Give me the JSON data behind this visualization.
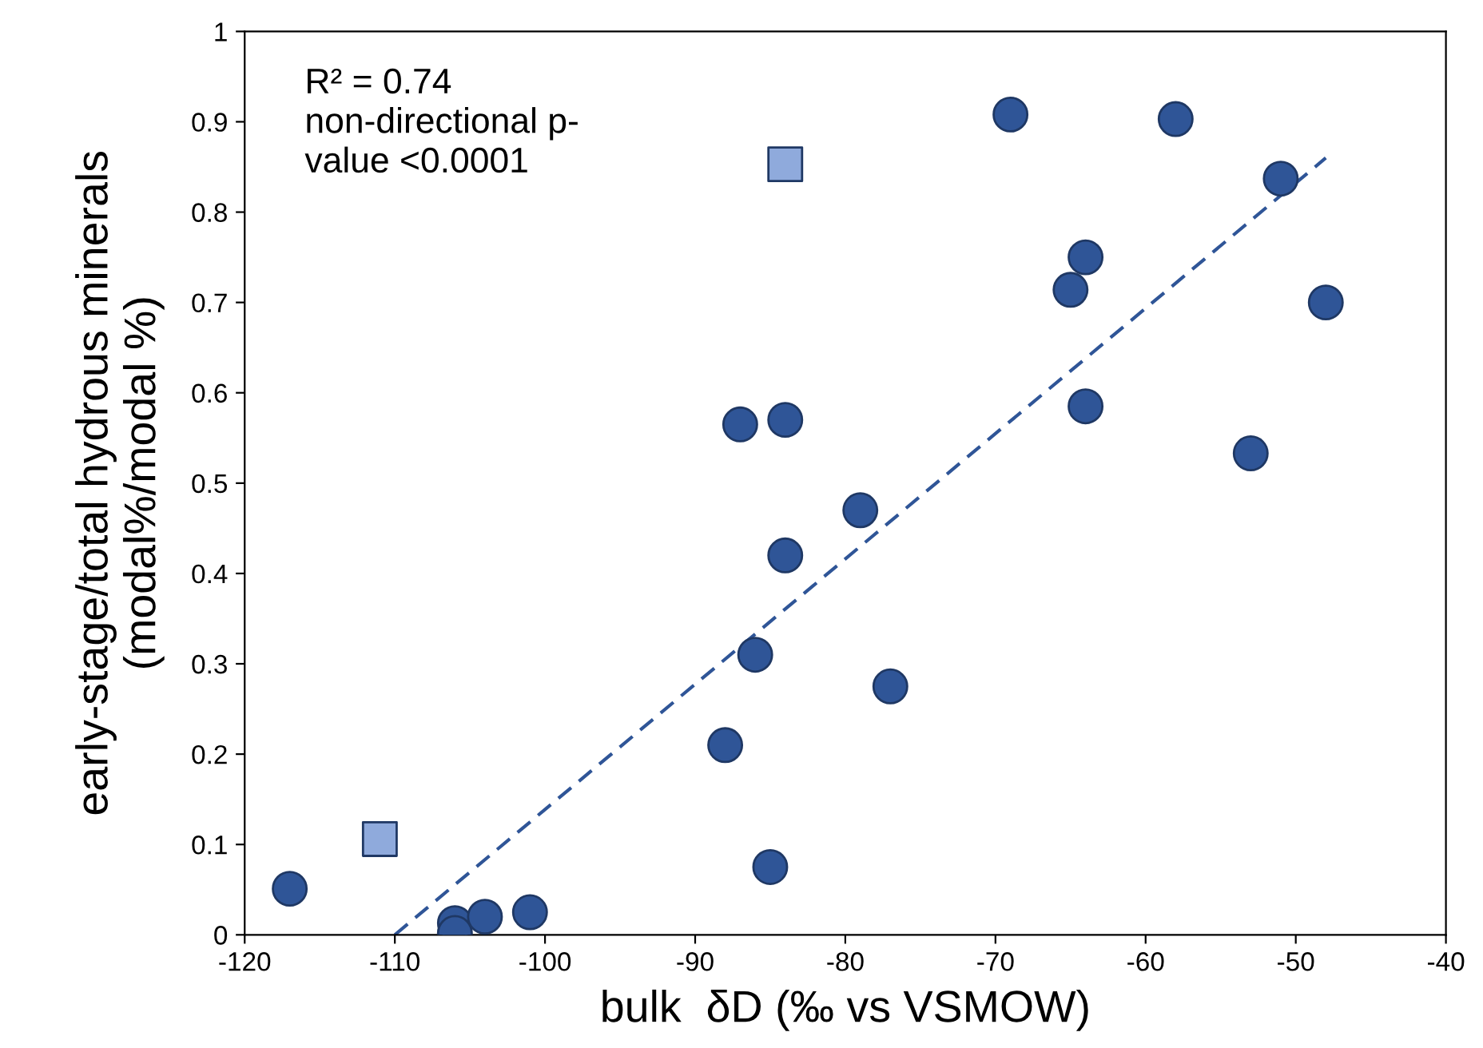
{
  "chart_data": {
    "type": "scatter",
    "xlabel": "bulk  δD (‰ vs VSMOW)",
    "ylabel": "early-stage/total hydrous minerals\n(modal%/modal %)",
    "annotations": [
      "R² = 0.74\nnon-directional p-\nvalue <0.0001"
    ],
    "xlim": [
      -120,
      -40
    ],
    "xticks": [
      -120,
      -110,
      -100,
      -90,
      -80,
      -70,
      -60,
      -50,
      -40
    ],
    "ylim": [
      0,
      1
    ],
    "yticks": [
      0,
      0.1,
      0.2,
      0.3,
      0.4,
      0.5,
      0.6,
      0.7,
      0.8,
      0.9,
      1
    ],
    "grid": false,
    "legend": false,
    "series": [
      {
        "marker": "circle",
        "color": "#2f5597",
        "x": [
          -117,
          -106,
          -106,
          -104,
          -101,
          -88,
          -87,
          -86,
          -85,
          -84,
          -84,
          -79,
          -77,
          -69,
          -65,
          -64,
          -64,
          -58,
          -53,
          -51,
          -48
        ],
        "values": [
          0.051,
          0.013,
          0.002,
          0.02,
          0.025,
          0.21,
          0.565,
          0.31,
          0.075,
          0.57,
          0.42,
          0.47,
          0.275,
          0.908,
          0.714,
          0.75,
          0.585,
          0.903,
          0.533,
          0.837,
          0.7
        ]
      },
      {
        "marker": "square",
        "color": "#8faadc",
        "x": [
          -84,
          -111
        ],
        "values": [
          0.853,
          0.106
        ]
      },
      {
        "type": "line",
        "marker": "none",
        "line_style": "dashed",
        "color": "#2f5597",
        "x": [
          -110,
          -48
        ],
        "values": [
          0,
          0.86
        ]
      }
    ]
  }
}
